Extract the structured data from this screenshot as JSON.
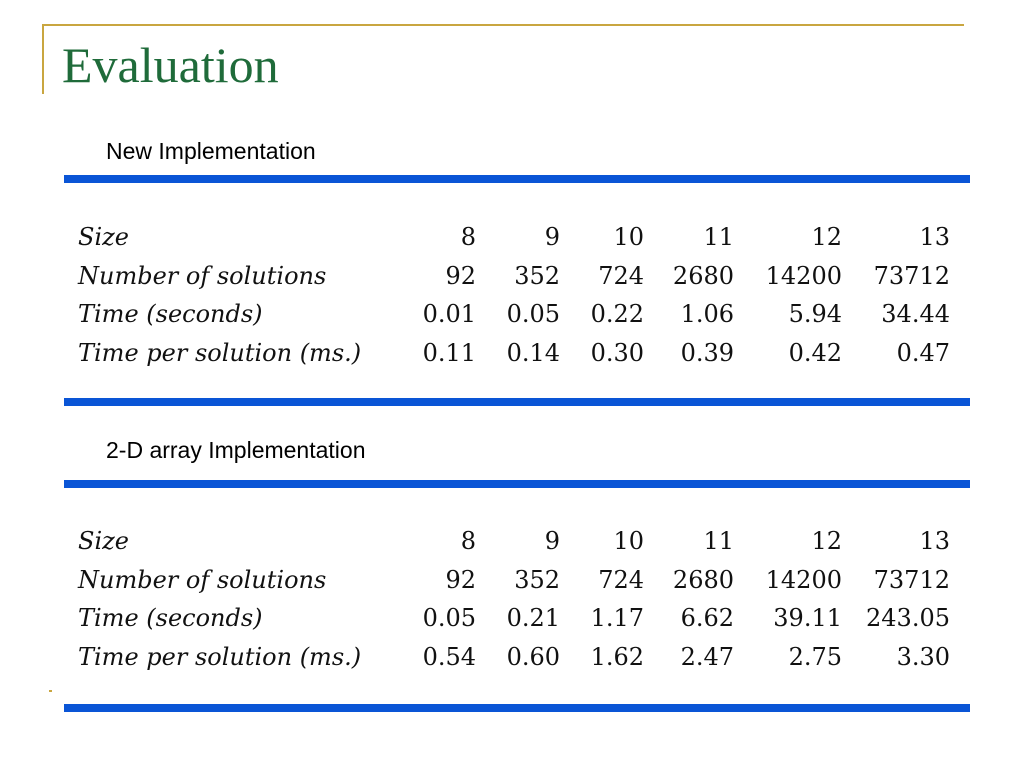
{
  "slide": {
    "title": "Evaluation"
  },
  "sections": [
    {
      "heading": "New Implementation",
      "rows": [
        {
          "label": "Size",
          "values": [
            "8",
            "9",
            "10",
            "11",
            "12",
            "13"
          ]
        },
        {
          "label": "Number of solutions",
          "values": [
            "92",
            "352",
            "724",
            "2680",
            "14200",
            "73712"
          ]
        },
        {
          "label": "Time (seconds)",
          "values": [
            "0.01",
            "0.05",
            "0.22",
            "1.06",
            "5.94",
            "34.44"
          ]
        },
        {
          "label": "Time per solution (ms.)",
          "values": [
            "0.11",
            "0.14",
            "0.30",
            "0.39",
            "0.42",
            "0.47"
          ]
        }
      ]
    },
    {
      "heading": "2-D array Implementation",
      "rows": [
        {
          "label": "Size",
          "values": [
            "8",
            "9",
            "10",
            "11",
            "12",
            "13"
          ]
        },
        {
          "label": "Number of solutions",
          "values": [
            "92",
            "352",
            "724",
            "2680",
            "14200",
            "73712"
          ]
        },
        {
          "label": "Time (seconds)",
          "values": [
            "0.05",
            "0.21",
            "1.17",
            "6.62",
            "39.11",
            "243.05"
          ]
        },
        {
          "label": "Time per solution (ms.)",
          "values": [
            "0.54",
            "0.60",
            "1.62",
            "2.47",
            "2.75",
            "3.30"
          ]
        }
      ]
    }
  ],
  "colors": {
    "title": "#1f6b3a",
    "rule": "#0a55d6",
    "frame": "#c9a640"
  }
}
